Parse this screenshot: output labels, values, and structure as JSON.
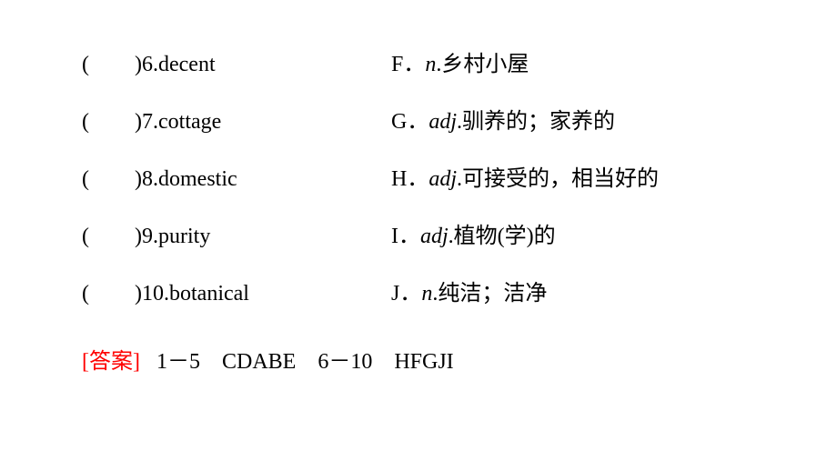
{
  "items": [
    {
      "num": "6",
      "word": "decent",
      "letter": "F",
      "pos": "n",
      "def": "乡村小屋"
    },
    {
      "num": "7",
      "word": "cottage",
      "letter": "G",
      "pos": "adj",
      "def": "驯养的；家养的"
    },
    {
      "num": "8",
      "word": "domestic",
      "letter": "H",
      "pos": "adj",
      "def": "可接受的，相当好的"
    },
    {
      "num": "9",
      "word": "purity",
      "letter": "I",
      "pos": "adj",
      "def": "植物(学)的"
    },
    {
      "num": "10",
      "word": "botanical",
      "letter": "J",
      "pos": "n",
      "def": "纯洁；洁净"
    }
  ],
  "answer": {
    "label": "[答案]",
    "range1": "1－5",
    "ans1": "CDABE",
    "range2": "6－10",
    "ans2": "HFGJI"
  },
  "styling": {
    "background_color": "#ffffff",
    "text_color": "#000000",
    "answer_label_color": "#ff0000",
    "font_size": 24,
    "row_gap": 28,
    "left_col_width": 340
  }
}
